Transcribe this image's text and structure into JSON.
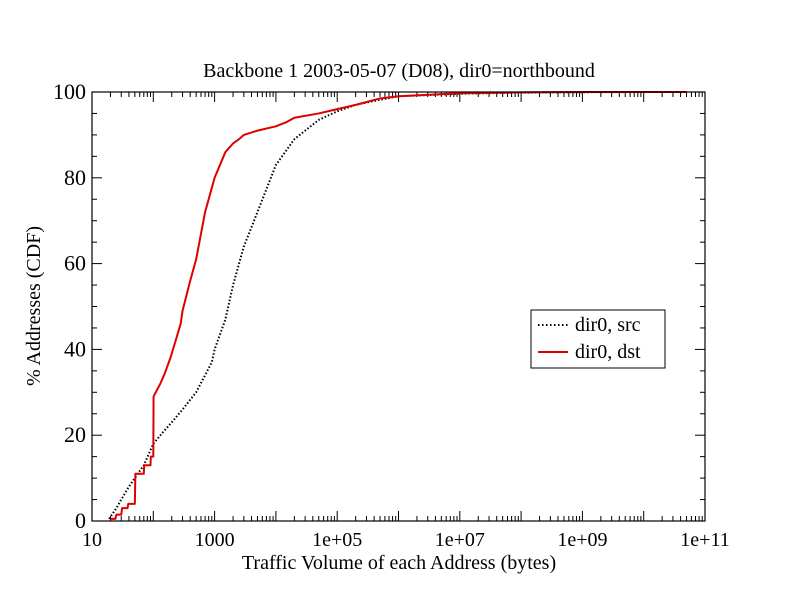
{
  "chart_data": {
    "type": "line",
    "title": "Backbone 1 2003-05-07 (D08), dir0=northbound",
    "xlabel": "Traffic Volume of each Address (bytes)",
    "ylabel": "% Addresses (CDF)",
    "x_scale": "log",
    "xlim": [
      10,
      100000000000.0
    ],
    "ylim": [
      0,
      100
    ],
    "x_ticks": [
      10,
      1000,
      100000,
      10000000,
      1000000000,
      100000000000
    ],
    "x_tick_labels": [
      "10",
      "1000",
      "1e+05",
      "1e+07",
      "1e+09",
      "1e+11"
    ],
    "y_ticks": [
      0,
      20,
      40,
      60,
      80,
      100
    ],
    "y_tick_labels": [
      "0",
      "20",
      "40",
      "60",
      "80",
      "100"
    ],
    "grid": false,
    "legend_position": "right",
    "series": [
      {
        "name": "dir0, src",
        "color": "#000000",
        "style": "dotted",
        "x": [
          19,
          25,
          30,
          40,
          50,
          70,
          100,
          150,
          200,
          300,
          500,
          700,
          900,
          1000,
          1500,
          2000,
          3000,
          5000,
          10000,
          20000,
          50000,
          100000,
          200000,
          500000,
          1000000,
          10000000,
          100000000,
          1000000000,
          10000000000,
          50000000000
        ],
        "y": [
          0.5,
          3,
          5,
          8,
          10,
          13,
          18,
          21,
          23,
          26,
          30,
          34,
          37,
          40,
          47,
          55,
          64,
          72,
          83,
          89,
          93.5,
          95.5,
          97,
          98.2,
          99,
          99.6,
          99.85,
          99.95,
          100,
          100
        ]
      },
      {
        "name": "dir0, dst",
        "color": "#dd0000",
        "style": "solid",
        "x": [
          20,
          24,
          25,
          30,
          31,
          38,
          39,
          50,
          51,
          70,
          71,
          90,
          91,
          100,
          101,
          130,
          150,
          190,
          220,
          280,
          300,
          400,
          500,
          700,
          1000,
          1500,
          2000,
          2500,
          3000,
          5000,
          10000,
          15000,
          20000,
          50000,
          100000,
          200000,
          500000,
          1000000,
          10000000,
          100000000,
          1000000000,
          10000000000,
          50000000000
        ],
        "y": [
          0.5,
          0.5,
          1.5,
          1.5,
          3,
          3,
          4,
          4,
          11,
          11,
          13,
          13,
          15,
          15,
          29,
          32,
          34,
          38,
          41,
          46,
          49,
          56,
          61,
          72,
          80,
          86,
          88,
          89,
          90,
          91,
          92,
          93,
          94,
          95,
          96,
          97,
          98.5,
          99,
          99.7,
          99.9,
          100,
          100,
          100
        ]
      }
    ]
  }
}
